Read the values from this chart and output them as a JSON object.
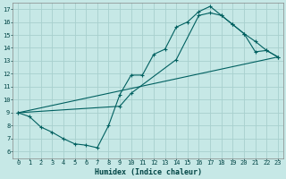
{
  "xlabel": "Humidex (Indice chaleur)",
  "bg_color": "#c6e8e6",
  "grid_color": "#a8d0ce",
  "line_color": "#006060",
  "xlim": [
    -0.5,
    23.5
  ],
  "ylim": [
    5.5,
    17.5
  ],
  "xticks": [
    0,
    1,
    2,
    3,
    4,
    5,
    6,
    7,
    8,
    9,
    10,
    11,
    12,
    13,
    14,
    15,
    16,
    17,
    18,
    19,
    20,
    21,
    22,
    23
  ],
  "yticks": [
    6,
    7,
    8,
    9,
    10,
    11,
    12,
    13,
    14,
    15,
    16,
    17
  ],
  "curve1_x": [
    0,
    1,
    2,
    3,
    4,
    5,
    6,
    7,
    8,
    9,
    10,
    11,
    12,
    13,
    14,
    15,
    16,
    17,
    18,
    19,
    20,
    21,
    22,
    23
  ],
  "curve1_y": [
    9.0,
    8.7,
    7.9,
    7.5,
    7.0,
    6.6,
    6.5,
    6.3,
    8.0,
    10.4,
    11.9,
    11.9,
    13.5,
    13.9,
    15.6,
    16.0,
    16.8,
    17.2,
    16.5,
    15.8,
    15.1,
    14.5,
    13.8,
    13.3
  ],
  "curve2_x": [
    0,
    9,
    10,
    14,
    16,
    17,
    18,
    19,
    20,
    21,
    22,
    23
  ],
  "curve2_y": [
    9.0,
    9.5,
    10.5,
    13.1,
    16.5,
    16.7,
    16.5,
    15.8,
    15.1,
    13.7,
    13.8,
    13.3
  ],
  "curve3_x": [
    0,
    23
  ],
  "curve3_y": [
    9.0,
    13.3
  ]
}
